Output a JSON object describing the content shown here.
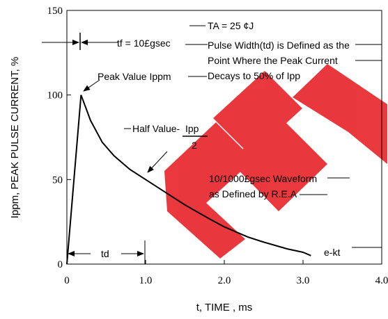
{
  "chart_data": {
    "type": "line",
    "xlabel": "t, TIME , ms",
    "ylabel": "Ippm, PEAK PULSE CURRENT, %",
    "xlim": [
      0,
      4.0
    ],
    "ylim": [
      0,
      150
    ],
    "x_ticks": [
      {
        "value": 0,
        "label": "0"
      },
      {
        "value": 1.0,
        "label": "1.0"
      },
      {
        "value": 2.0,
        "label": "2.0"
      },
      {
        "value": 3.0,
        "label": "3.0"
      },
      {
        "value": 4.0,
        "label": "4.0"
      }
    ],
    "y_ticks": [
      {
        "value": 0,
        "label": "0"
      },
      {
        "value": 50,
        "label": "50"
      },
      {
        "value": 100,
        "label": "100"
      },
      {
        "value": 150,
        "label": "150"
      }
    ],
    "grid": false,
    "series": [
      {
        "x": [
          0,
          0.18,
          0.22,
          0.3,
          0.45,
          0.6,
          0.8,
          1.0,
          1.2,
          1.5,
          1.8,
          2.0,
          2.3,
          2.5,
          2.8,
          3.0,
          3.1
        ],
        "y": [
          0,
          100,
          95,
          85,
          72,
          64,
          56,
          50,
          44,
          35,
          27,
          22,
          16,
          13,
          9,
          7,
          5
        ]
      }
    ],
    "annotations": {
      "ta": "TA = 25 ¢J",
      "tf": "tf = 10£gsec",
      "pulse_width_lines": [
        "Pulse Width(td) is Defined as the",
        "Point Where the Peak Current",
        "Decays to 50% of Ipp"
      ],
      "peak_value": "Peak Value  Ippm",
      "half_value_prefix": "Half Value-",
      "half_value_numerator": "Ipp",
      "half_value_denominator": "2",
      "waveform_lines": [
        "10/1000£gsec Waveform",
        "as Defined by R.E.A"
      ],
      "td": "td",
      "ekt": "e-kt"
    },
    "colors": {
      "curve": "#000000",
      "watermark": "#e8282d"
    }
  }
}
